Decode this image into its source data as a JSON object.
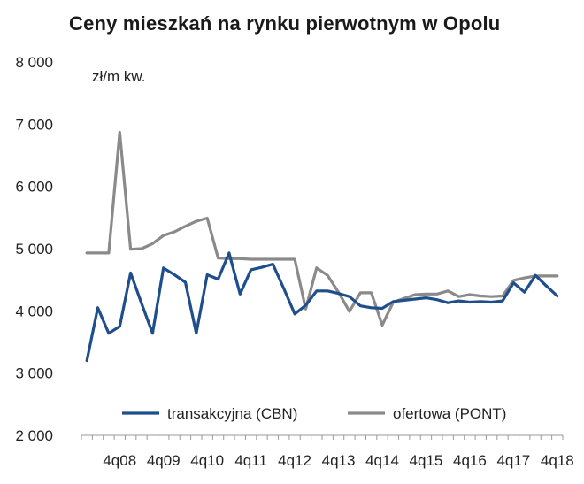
{
  "chart_data": {
    "type": "line",
    "title": "Ceny mieszkań na rynku pierwotnym w Opolu",
    "ylabel": "zł/m kw.",
    "ylim": [
      2000,
      8000
    ],
    "yticks": [
      2000,
      3000,
      4000,
      5000,
      6000,
      7000,
      8000
    ],
    "ytick_labels": [
      "2 000",
      "3 000",
      "4 000",
      "5 000",
      "6 000",
      "7 000",
      "8 000"
    ],
    "xtick_labels": [
      "4q08",
      "4q09",
      "4q10",
      "4q11",
      "4q12",
      "4q13",
      "4q14",
      "4q15",
      "4q16",
      "4q17",
      "4q18"
    ],
    "xtick_index": [
      3,
      7,
      11,
      15,
      19,
      23,
      27,
      31,
      35,
      39,
      43
    ],
    "legend": "bottom",
    "series": [
      {
        "name": "transakcyjna (CBN)",
        "color": "#1f4e8c",
        "values": [
          3200,
          4050,
          3640,
          3750,
          4610,
          4120,
          3640,
          4690,
          4580,
          4460,
          3640,
          4580,
          4510,
          4930,
          4270,
          4660,
          4700,
          4750,
          4360,
          3950,
          4090,
          4320,
          4320,
          4280,
          4230,
          4080,
          4050,
          4040,
          4150,
          4170,
          4190,
          4210,
          4180,
          4130,
          4160,
          4140,
          4150,
          4140,
          4160,
          4450,
          4300,
          4570,
          4400,
          4240
        ]
      },
      {
        "name": "ofertowa (PONT)",
        "color": "#8a8a8a",
        "values": [
          4930,
          4930,
          4930,
          6870,
          4990,
          5000,
          5080,
          5210,
          5270,
          5360,
          5440,
          5490,
          4850,
          4840,
          4840,
          4830,
          4830,
          4830,
          4830,
          4830,
          4030,
          4690,
          4570,
          4300,
          3990,
          4290,
          4290,
          3770,
          4140,
          4200,
          4260,
          4270,
          4270,
          4320,
          4230,
          4260,
          4240,
          4230,
          4240,
          4490,
          4530,
          4560,
          4560,
          4560
        ]
      }
    ]
  }
}
